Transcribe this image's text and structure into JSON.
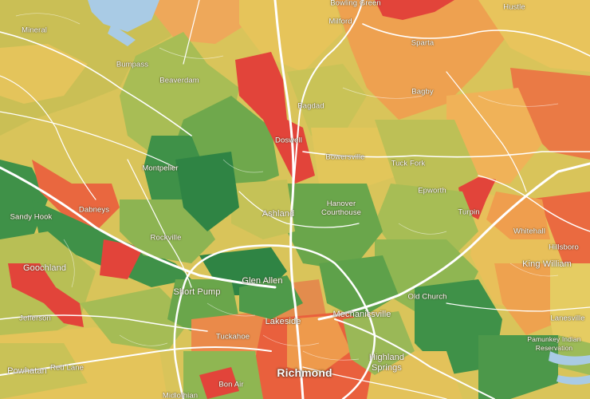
{
  "map": {
    "colors": {
      "red": "#e2443a",
      "red_orange": "#e9673f",
      "orange": "#ee9a4c",
      "light_orange": "#f1b55a",
      "yellow": "#e6c75a",
      "yellow_green": "#c8c458",
      "light_green": "#a7bd55",
      "green": "#6fa84c",
      "dark_green": "#3f9148",
      "deep_green": "#2f8444",
      "water": "#a9cbe5",
      "road": "#ffffff"
    },
    "places": [
      {
        "id": "bowling-green",
        "name": "Bowling Green"
      },
      {
        "id": "milford",
        "name": "Milford"
      },
      {
        "id": "hustle",
        "name": "Hustle"
      },
      {
        "id": "mineral",
        "name": "Mineral"
      },
      {
        "id": "sparta",
        "name": "Sparta"
      },
      {
        "id": "bumpass",
        "name": "Bumpass"
      },
      {
        "id": "beaverdam",
        "name": "Beaverdam"
      },
      {
        "id": "bagdad",
        "name": "Bagdad"
      },
      {
        "id": "bagby",
        "name": "Bagby"
      },
      {
        "id": "doswell",
        "name": "Doswell"
      },
      {
        "id": "bowersville",
        "name": "Bowersville"
      },
      {
        "id": "tuck-fork",
        "name": "Tuck Fork"
      },
      {
        "id": "montpelier",
        "name": "Montpelier"
      },
      {
        "id": "epworth",
        "name": "Epworth"
      },
      {
        "id": "turpin",
        "name": "Turpin"
      },
      {
        "id": "sandy-hook",
        "name": "Sandy Hook"
      },
      {
        "id": "dabneys",
        "name": "Dabneys"
      },
      {
        "id": "ashland",
        "name": "Ashland"
      },
      {
        "id": "hanover-courthouse",
        "name": "Hanover Courthouse"
      },
      {
        "id": "whitehall",
        "name": "Whitehall"
      },
      {
        "id": "hillsboro",
        "name": "Hillsboro"
      },
      {
        "id": "king-william",
        "name": "King William"
      },
      {
        "id": "rockville",
        "name": "Rockville"
      },
      {
        "id": "goochland",
        "name": "Goochland"
      },
      {
        "id": "glen-allen",
        "name": "Glen Allen"
      },
      {
        "id": "short-pump",
        "name": "Short Pump"
      },
      {
        "id": "old-church",
        "name": "Old Church"
      },
      {
        "id": "mechanicsville",
        "name": "Mechanicsville"
      },
      {
        "id": "lakeside",
        "name": "Lakeside"
      },
      {
        "id": "jefferson",
        "name": "Jefferson"
      },
      {
        "id": "lanesville",
        "name": "Lanesville"
      },
      {
        "id": "tuckahoe",
        "name": "Tuckahoe"
      },
      {
        "id": "pamunkey",
        "name": "Pamunkey Indian Reservation"
      },
      {
        "id": "highland-springs",
        "name": "Highland Springs"
      },
      {
        "id": "powhatan",
        "name": "Powhatan"
      },
      {
        "id": "red-lane",
        "name": "Red Lane"
      },
      {
        "id": "bon-air",
        "name": "Bon Air"
      },
      {
        "id": "richmond",
        "name": "Richmond"
      },
      {
        "id": "midlothian",
        "name": "Midlothian"
      }
    ]
  }
}
